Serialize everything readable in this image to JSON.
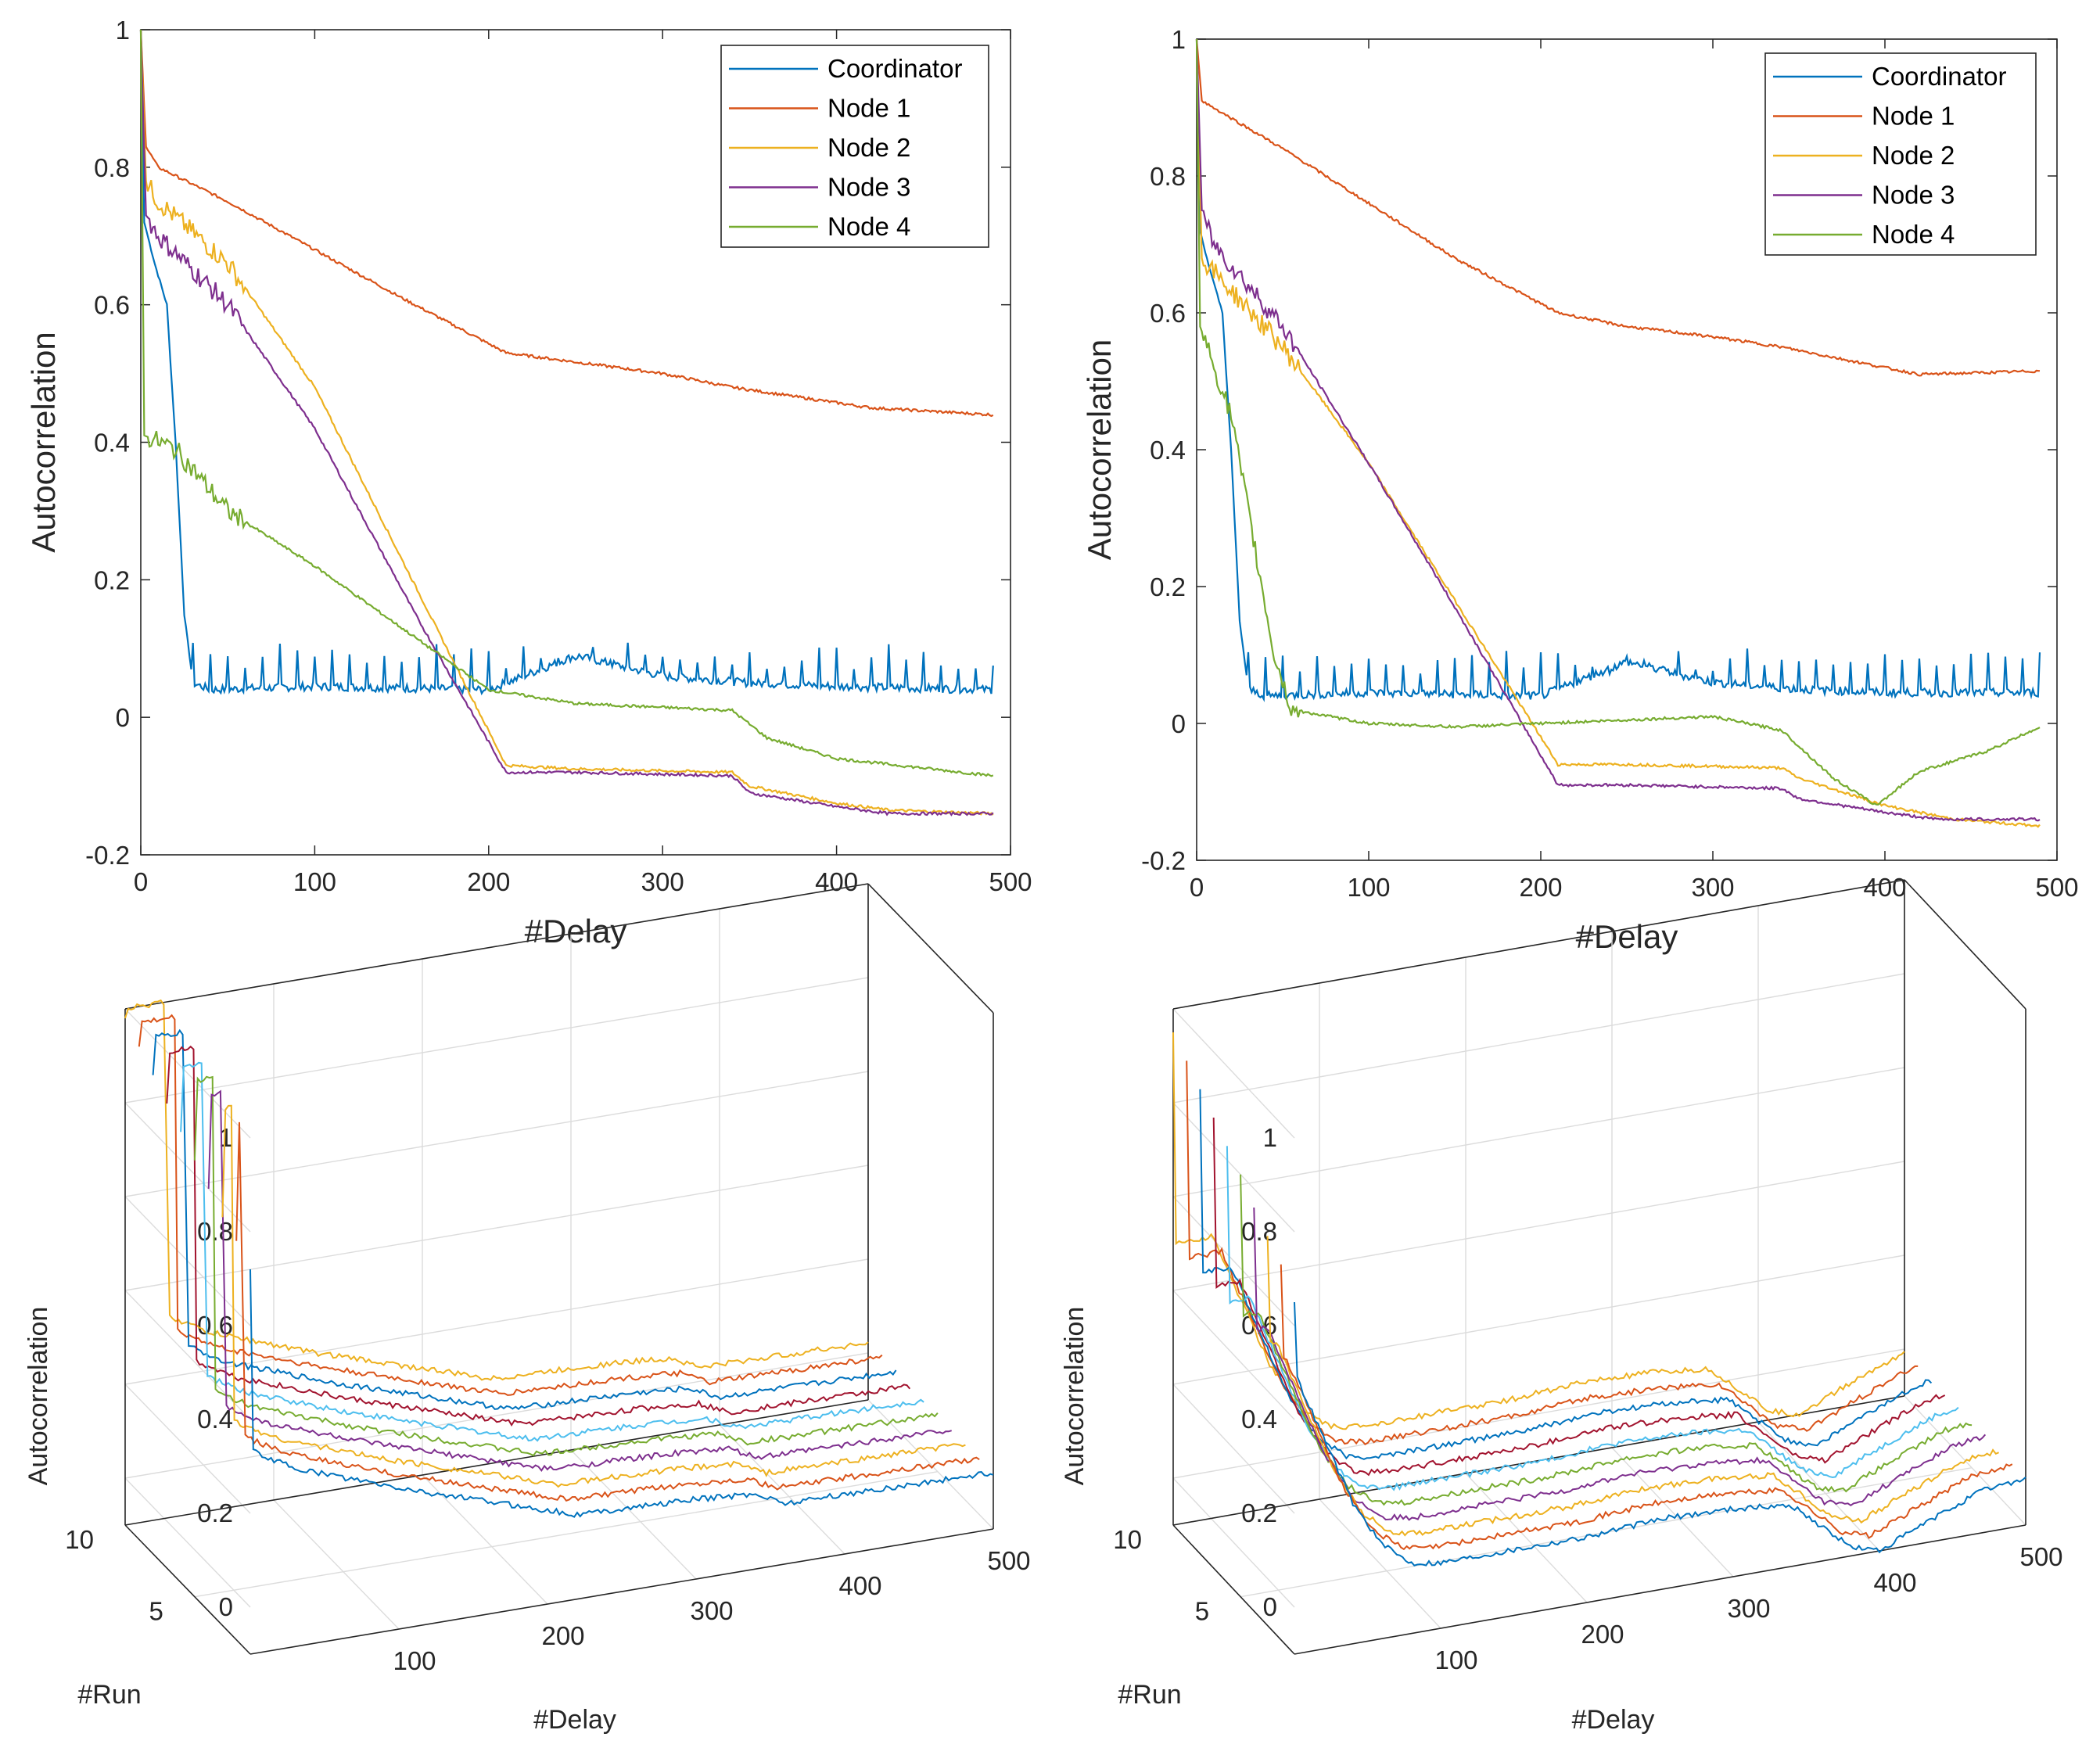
{
  "colors": [
    "#0072BD",
    "#D95319",
    "#EDB120",
    "#7E2F8E",
    "#77AC30",
    "#4DBEEE",
    "#A2142F"
  ],
  "chart_data": [
    {
      "id": "top-left",
      "type": "line",
      "title": "",
      "xlabel": "#Delay",
      "ylabel": "Autocorrelation",
      "xlim": [
        0,
        500
      ],
      "ylim": [
        -0.2,
        1
      ],
      "xticks": [
        "0",
        "100",
        "200",
        "300",
        "400",
        "500"
      ],
      "yticks": [
        "-0.2",
        "0",
        "0.2",
        "0.4",
        "0.6",
        "0.8",
        "1"
      ],
      "legend": "top-right",
      "series": [
        {
          "name": "Coordinator",
          "points": [
            [
              0,
              1
            ],
            [
              2,
              0.72
            ],
            [
              8,
              0.66
            ],
            [
              15,
              0.6
            ],
            [
              20,
              0.4
            ],
            [
              25,
              0.15
            ],
            [
              30,
              0.05
            ],
            [
              40,
              0.04
            ],
            [
              100,
              0.045
            ],
            [
              200,
              0.04
            ],
            [
              250,
              0.09
            ],
            [
              300,
              0.06
            ],
            [
              350,
              0.05
            ],
            [
              400,
              0.045
            ],
            [
              490,
              0.04
            ]
          ],
          "spike_base": 0.04,
          "spike_amp": 0.05,
          "spike_period": 10,
          "spike_from": 30
        },
        {
          "name": "Node 1",
          "points": [
            [
              0,
              1
            ],
            [
              3,
              0.83
            ],
            [
              10,
              0.8
            ],
            [
              50,
              0.75
            ],
            [
              100,
              0.68
            ],
            [
              150,
              0.61
            ],
            [
              210,
              0.53
            ],
            [
              300,
              0.5
            ],
            [
              340,
              0.48
            ],
            [
              420,
              0.45
            ],
            [
              490,
              0.44
            ]
          ]
        },
        {
          "name": "Node 2",
          "points": [
            [
              0,
              1
            ],
            [
              3,
              0.78
            ],
            [
              10,
              0.75
            ],
            [
              50,
              0.66
            ],
            [
              100,
              0.48
            ],
            [
              160,
              0.18
            ],
            [
              210,
              -0.07
            ],
            [
              250,
              -0.075
            ],
            [
              340,
              -0.08
            ],
            [
              350,
              -0.1
            ],
            [
              400,
              -0.125
            ],
            [
              430,
              -0.135
            ],
            [
              490,
              -0.14
            ]
          ]
        },
        {
          "name": "Node 3",
          "points": [
            [
              0,
              1
            ],
            [
              3,
              0.73
            ],
            [
              10,
              0.7
            ],
            [
              50,
              0.6
            ],
            [
              100,
              0.42
            ],
            [
              160,
              0.14
            ],
            [
              210,
              -0.08
            ],
            [
              250,
              -0.08
            ],
            [
              340,
              -0.085
            ],
            [
              350,
              -0.11
            ],
            [
              400,
              -0.13
            ],
            [
              430,
              -0.14
            ],
            [
              490,
              -0.14
            ]
          ]
        },
        {
          "name": "Node 4",
          "points": [
            [
              0,
              1
            ],
            [
              2,
              0.41
            ],
            [
              20,
              0.39
            ],
            [
              50,
              0.3
            ],
            [
              100,
              0.22
            ],
            [
              150,
              0.13
            ],
            [
              200,
              0.04
            ],
            [
              250,
              0.02
            ],
            [
              340,
              0.01
            ],
            [
              360,
              -0.03
            ],
            [
              400,
              -0.06
            ],
            [
              490,
              -0.085
            ]
          ]
        }
      ]
    },
    {
      "id": "top-right",
      "type": "line",
      "title": "",
      "xlabel": "#Delay",
      "ylabel": "Autocorrelation",
      "xlim": [
        0,
        500
      ],
      "ylim": [
        -0.2,
        1
      ],
      "xticks": [
        "0",
        "100",
        "200",
        "300",
        "400",
        "500"
      ],
      "yticks": [
        "-0.2",
        "0",
        "0.2",
        "0.4",
        "0.6",
        "0.8",
        "1"
      ],
      "legend": "top-right",
      "series": [
        {
          "name": "Coordinator",
          "points": [
            [
              0,
              1
            ],
            [
              2,
              0.72
            ],
            [
              8,
              0.66
            ],
            [
              15,
              0.6
            ],
            [
              20,
              0.4
            ],
            [
              25,
              0.15
            ],
            [
              30,
              0.05
            ],
            [
              40,
              0.04
            ],
            [
              100,
              0.045
            ],
            [
              200,
              0.04
            ],
            [
              250,
              0.09
            ],
            [
              300,
              0.06
            ],
            [
              350,
              0.05
            ],
            [
              400,
              0.045
            ],
            [
              490,
              0.045
            ]
          ],
          "spike_base": 0.04,
          "spike_amp": 0.05,
          "spike_period": 10,
          "spike_from": 30
        },
        {
          "name": "Node 1",
          "points": [
            [
              0,
              1
            ],
            [
              3,
              0.91
            ],
            [
              50,
              0.84
            ],
            [
              100,
              0.76
            ],
            [
              150,
              0.68
            ],
            [
              210,
              0.6
            ],
            [
              250,
              0.58
            ],
            [
              300,
              0.565
            ],
            [
              340,
              0.55
            ],
            [
              420,
              0.51
            ],
            [
              490,
              0.515
            ]
          ]
        },
        {
          "name": "Node 2",
          "points": [
            [
              0,
              1
            ],
            [
              3,
              0.68
            ],
            [
              10,
              0.66
            ],
            [
              50,
              0.55
            ],
            [
              100,
              0.38
            ],
            [
              150,
              0.18
            ],
            [
              210,
              -0.06
            ],
            [
              250,
              -0.06
            ],
            [
              340,
              -0.065
            ],
            [
              350,
              -0.08
            ],
            [
              400,
              -0.12
            ],
            [
              440,
              -0.14
            ],
            [
              490,
              -0.15
            ]
          ]
        },
        {
          "name": "Node 3",
          "points": [
            [
              0,
              1
            ],
            [
              3,
              0.75
            ],
            [
              10,
              0.7
            ],
            [
              50,
              0.58
            ],
            [
              100,
              0.38
            ],
            [
              150,
              0.17
            ],
            [
              210,
              -0.09
            ],
            [
              250,
              -0.09
            ],
            [
              340,
              -0.095
            ],
            [
              350,
              -0.11
            ],
            [
              400,
              -0.13
            ],
            [
              430,
              -0.14
            ],
            [
              490,
              -0.14
            ]
          ]
        },
        {
          "name": "Node 4",
          "points": [
            [
              0,
              1
            ],
            [
              2,
              0.58
            ],
            [
              20,
              0.45
            ],
            [
              45,
              0.1
            ],
            [
              55,
              0.02
            ],
            [
              100,
              0
            ],
            [
              150,
              -0.005
            ],
            [
              200,
              0
            ],
            [
              250,
              0.005
            ],
            [
              300,
              0.01
            ],
            [
              340,
              -0.01
            ],
            [
              370,
              -0.08
            ],
            [
              395,
              -0.12
            ],
            [
              420,
              -0.07
            ],
            [
              460,
              -0.04
            ],
            [
              490,
              -0.005
            ]
          ]
        }
      ]
    },
    {
      "id": "bottom-left",
      "type": "line3d",
      "xlabel": "#Delay",
      "ylabel": "#Run",
      "zlabel": "Autocorrelation",
      "xlim": [
        0,
        500
      ],
      "ylim": [
        1,
        10
      ],
      "zlim": [
        -0.1,
        1
      ],
      "xticks": [
        "100",
        "200",
        "300",
        "400",
        "500"
      ],
      "yticks": [
        "5",
        "10"
      ],
      "zticks": [
        "0",
        "0.2",
        "0.4",
        "0.6",
        "0.8",
        "1"
      ],
      "runs": 10,
      "profile": [
        [
          0,
          1
        ],
        [
          2,
          0.33
        ],
        [
          30,
          0.28
        ],
        [
          100,
          0.2
        ],
        [
          200,
          0.1
        ],
        [
          220,
          0.08
        ],
        [
          300,
          0.07
        ],
        [
          340,
          0.06
        ],
        [
          360,
          0.03
        ],
        [
          500,
          0.02
        ]
      ],
      "run_start_values": [
        0.72,
        0.75,
        0.77,
        0.8,
        0.83,
        0.86,
        0.89,
        0.92,
        0.95,
        0.98
      ]
    },
    {
      "id": "bottom-right",
      "type": "line3d",
      "xlabel": "#Delay",
      "ylabel": "#Run",
      "zlabel": "Autocorrelation",
      "xlim": [
        0,
        500
      ],
      "ylim": [
        1,
        10
      ],
      "zlim": [
        -0.1,
        1
      ],
      "xticks": [
        "100",
        "200",
        "300",
        "400",
        "500"
      ],
      "yticks": [
        "5",
        "10"
      ],
      "zticks": [
        "0",
        "0.2",
        "0.4",
        "0.6",
        "0.8",
        "1"
      ],
      "runs": 10,
      "profile": [
        [
          0,
          0.5
        ],
        [
          20,
          0.35
        ],
        [
          40,
          0.2
        ],
        [
          60,
          0.1
        ],
        [
          80,
          0.05
        ],
        [
          100,
          0.04
        ],
        [
          200,
          0.04
        ],
        [
          250,
          0.05
        ],
        [
          300,
          0.045
        ],
        [
          340,
          0.03
        ],
        [
          380,
          -0.08
        ],
        [
          400,
          -0.1
        ],
        [
          430,
          -0.06
        ],
        [
          470,
          -0.01
        ],
        [
          500,
          0
        ]
      ],
      "run_start_values": [
        0.65,
        0.7,
        0.73,
        0.76,
        0.8,
        0.83,
        0.86,
        0.89,
        0.92,
        0.95
      ]
    }
  ]
}
